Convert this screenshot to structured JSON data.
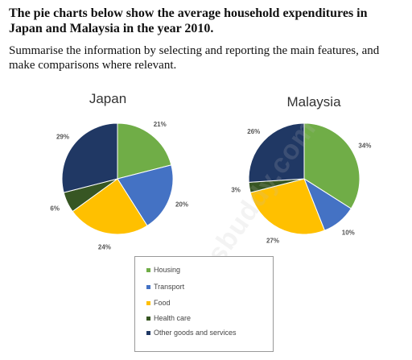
{
  "heading": {
    "title": "The pie charts below show the average household expenditures in Japan and Malaysia in the year 2010.",
    "instruction": "Summarise the information by selecting and reporting the main features, and make comparisons where relevant."
  },
  "colors": {
    "Housing": "#70ad47",
    "Transport": "#4472c4",
    "Food": "#ffc000",
    "Health care": "#375623",
    "Other goods and services": "#203864"
  },
  "legend": [
    "Housing",
    "Transport",
    "Food",
    "Health care",
    "Other goods and services"
  ],
  "watermark": "ieltsbuddy.com",
  "chart_data": [
    {
      "type": "pie",
      "title": "Japan",
      "categories": [
        "Housing",
        "Transport",
        "Food",
        "Health care",
        "Other goods and services"
      ],
      "values": [
        21,
        20,
        24,
        6,
        29
      ],
      "labels": [
        "21%",
        "20%",
        "24%",
        "6%",
        "29%"
      ]
    },
    {
      "type": "pie",
      "title": "Malaysia",
      "categories": [
        "Housing",
        "Transport",
        "Food",
        "Health care",
        "Other goods and services"
      ],
      "values": [
        34,
        10,
        27,
        3,
        26
      ],
      "labels": [
        "34%",
        "10%",
        "27%",
        "3%",
        "26%"
      ]
    }
  ]
}
